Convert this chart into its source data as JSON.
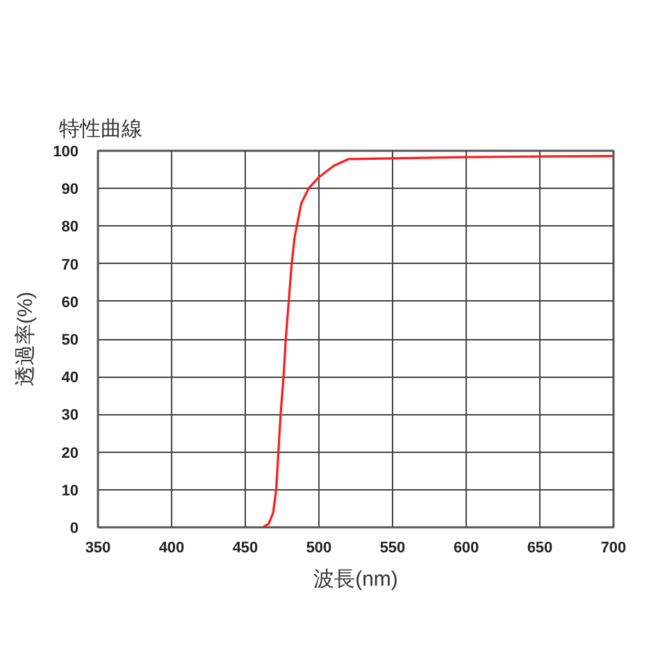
{
  "chart_data": {
    "type": "line",
    "title": "特性曲線",
    "xlabel": "波長(nm)",
    "ylabel": "透過率(%)",
    "x": [
      462,
      466,
      469,
      471,
      472.5,
      474,
      476,
      477.5,
      479.5,
      481.5,
      483.5,
      485,
      488,
      493,
      500,
      510,
      520,
      550,
      600,
      650,
      700
    ],
    "series": [
      {
        "color": "#ff1a1a",
        "values": [
          0,
          1,
          4,
          10,
          20,
          30,
          40,
          50,
          60,
          70,
          77,
          80,
          86,
          90,
          93,
          96,
          97.8,
          98,
          98.3,
          98.5,
          98.6
        ]
      }
    ],
    "xlim": [
      350,
      700
    ],
    "ylim": [
      0,
      100
    ],
    "xticks": [
      350,
      400,
      450,
      500,
      550,
      600,
      650,
      700
    ],
    "yticks": [
      0,
      10,
      20,
      30,
      40,
      50,
      60,
      70,
      80,
      90,
      100
    ],
    "grid": true,
    "line_style": "solid",
    "marker": "none"
  }
}
